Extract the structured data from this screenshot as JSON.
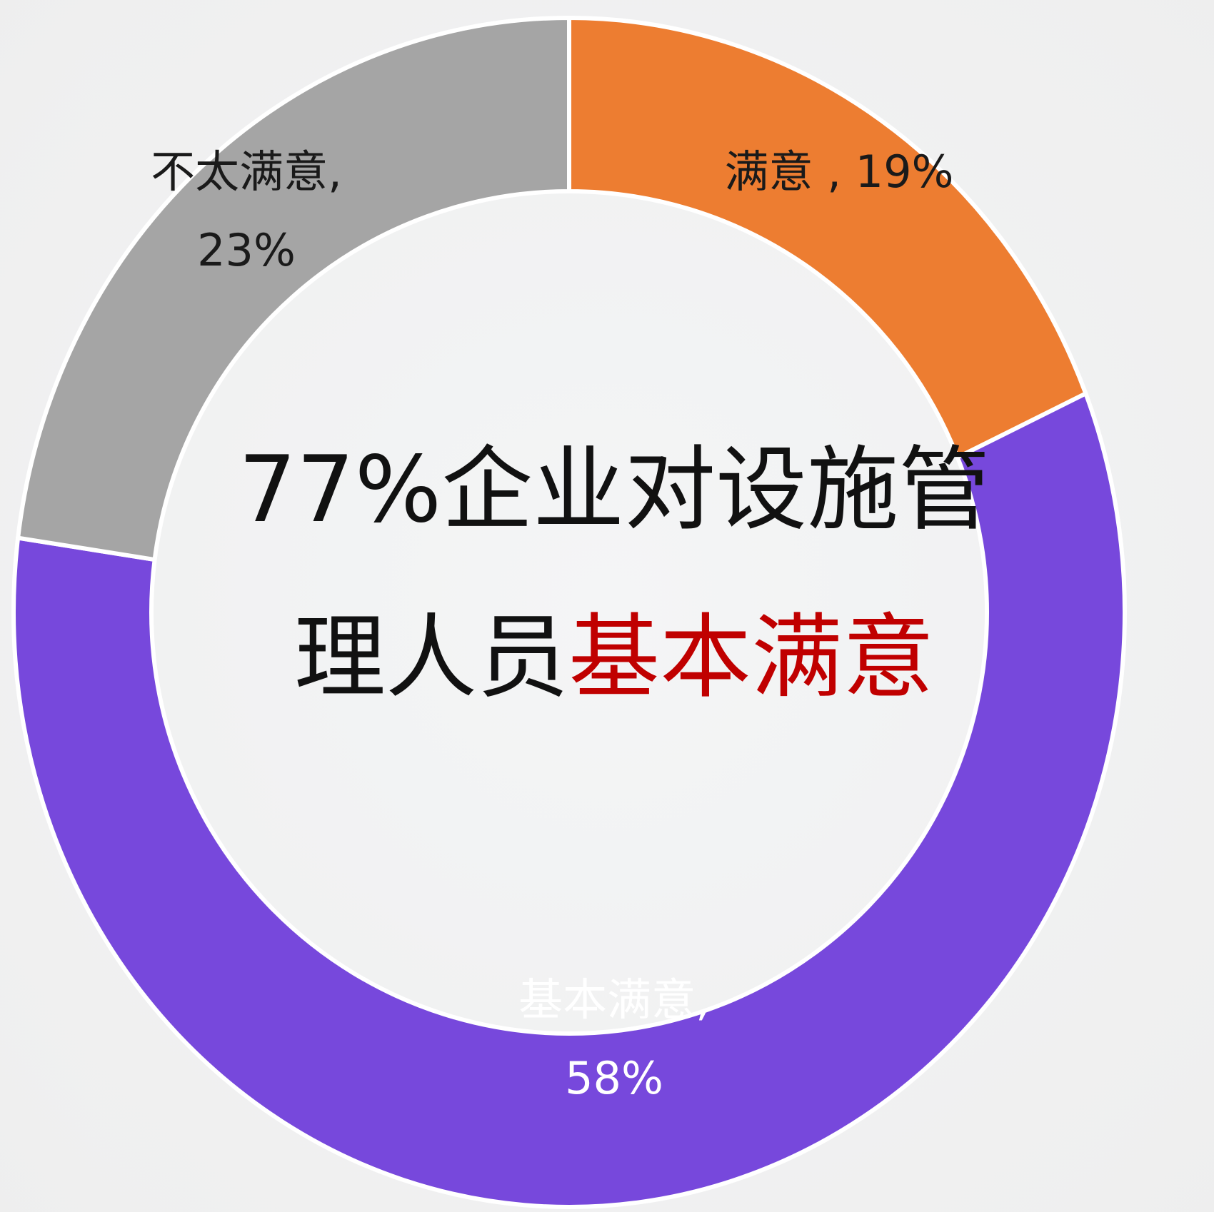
{
  "chart_data": {
    "type": "donut",
    "values": [
      19,
      58,
      23
    ],
    "value_labels": [
      [
        "满意 , 19%"
      ],
      [
        "基本满意,",
        "58%"
      ],
      [
        "不太满意,",
        "23%"
      ]
    ],
    "colors": [
      "#ed7d31",
      "#7748dc",
      "#a5a5a5"
    ],
    "label_colors": [
      "#1a1a1a",
      "#ffffff",
      "#1a1a1a"
    ],
    "center_text": {
      "lines": [
        "77%企业对设施管",
        "理人员"
      ],
      "highlight": "基本满意",
      "highlight_color": "#c00000"
    }
  }
}
